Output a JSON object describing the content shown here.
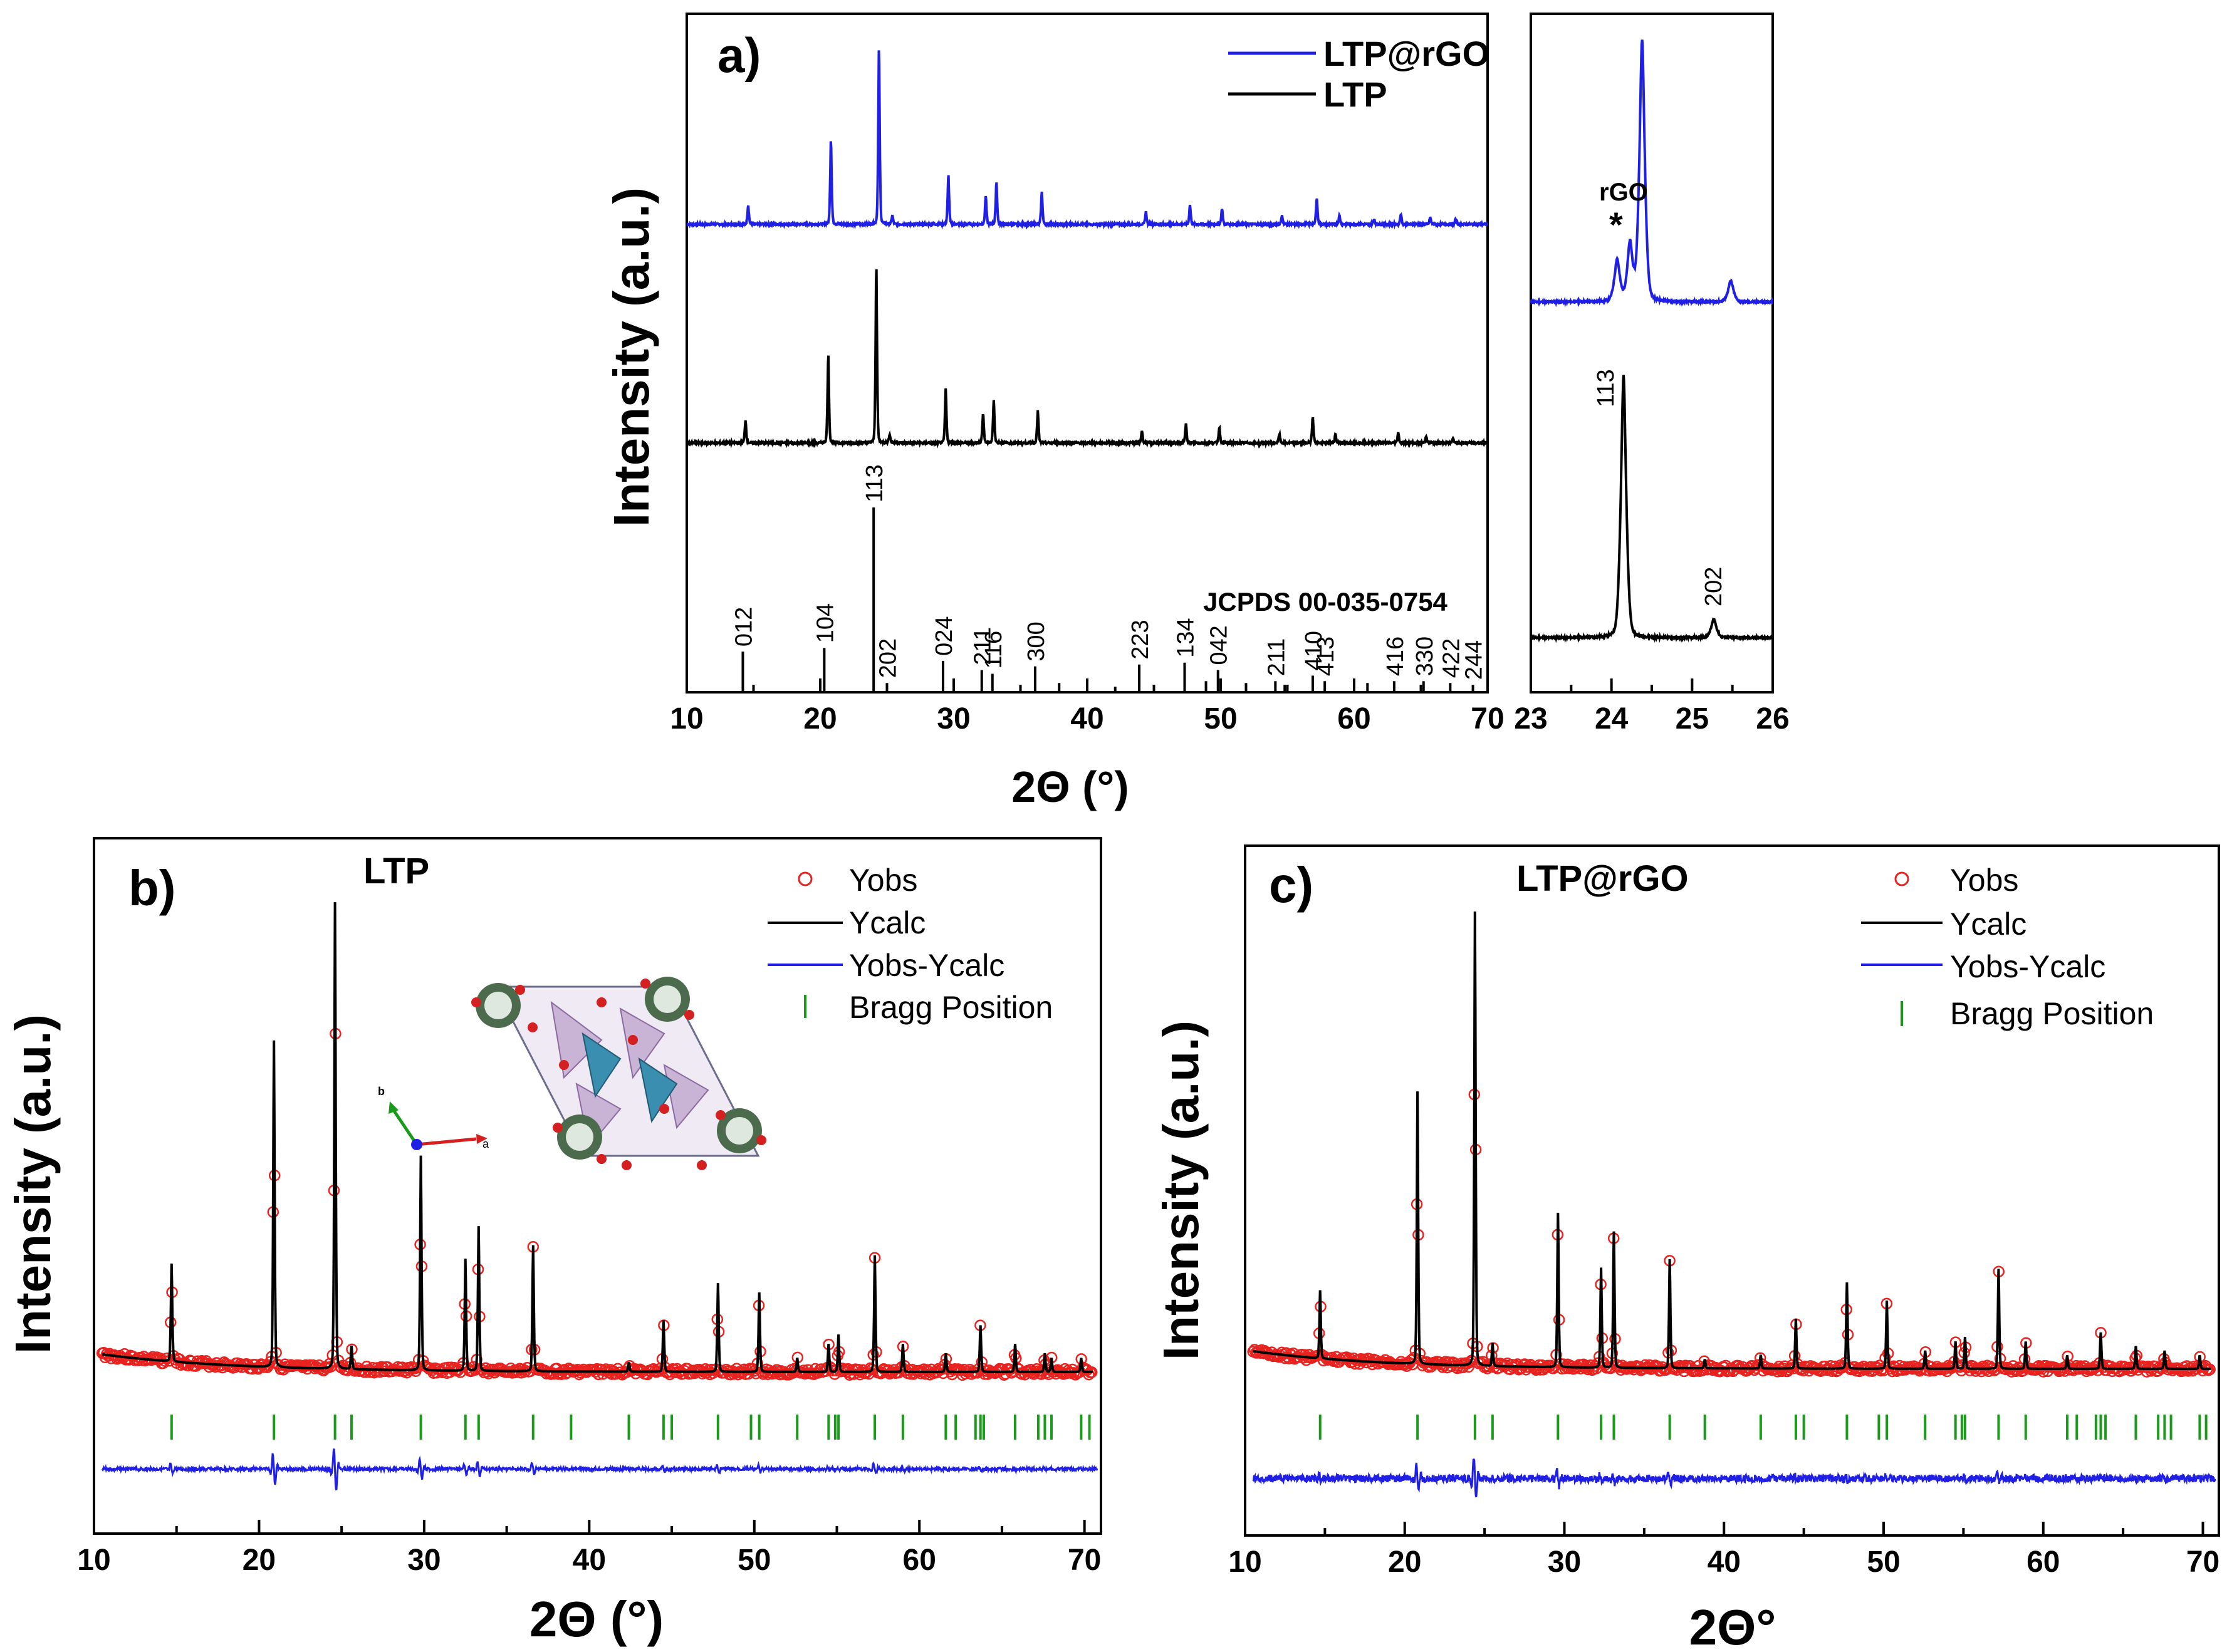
{
  "colors": {
    "blue": "#1f1fe6",
    "black": "#000000",
    "red": "#e8231f",
    "green": "#1a9a1a"
  },
  "panel_a": {
    "label": "a)",
    "ylabel": "Intensity (a.u.)",
    "xlabel": "2Θ (°)",
    "xticks": [
      "10",
      "20",
      "30",
      "40",
      "50",
      "60",
      "70"
    ],
    "inset_xticks": [
      "23",
      "24",
      "25",
      "26"
    ],
    "legend": [
      "LTP@rGO",
      "LTP"
    ],
    "jcpds_label": "JCPDS 00-035-0754",
    "rgo_label": "rGO",
    "star_label": "*",
    "inset_labels": [
      "113",
      "202"
    ]
  },
  "panel_b": {
    "label": "b)",
    "title": "LTP",
    "ylabel": "Intensity (a.u.)",
    "xlabel": "2Θ (°)",
    "xticks": [
      "10",
      "20",
      "30",
      "40",
      "50",
      "60",
      "70"
    ],
    "legend": [
      "Yobs",
      "Ycalc",
      "Yobs-Ycalc",
      "Bragg Position"
    ],
    "axis_labels": [
      "a",
      "b"
    ]
  },
  "panel_c": {
    "label": "c)",
    "title": "LTP@rGO",
    "ylabel": "Intensity (a.u.)",
    "xlabel": "2Θ°",
    "xticks": [
      "10",
      "20",
      "30",
      "40",
      "50",
      "60",
      "70"
    ],
    "legend": [
      "Yobs",
      "Ycalc",
      "Yobs-Ycalc",
      "Bragg Position"
    ]
  },
  "chart_data": [
    {
      "type": "line",
      "panel": "a",
      "xlabel": "2Θ (°)",
      "ylabel": "Intensity (a.u.)",
      "xlim": [
        10,
        70
      ],
      "series": [
        {
          "name": "LTP@rGO",
          "color": "#1f1fe6",
          "peaks": [
            [
              14.6,
              0.11
            ],
            [
              20.8,
              0.48
            ],
            [
              24.4,
              1.0
            ],
            [
              25.4,
              0.05
            ],
            [
              29.6,
              0.28
            ],
            [
              32.4,
              0.16
            ],
            [
              33.2,
              0.24
            ],
            [
              36.6,
              0.18
            ],
            [
              44.4,
              0.07
            ],
            [
              47.7,
              0.11
            ],
            [
              50.1,
              0.09
            ],
            [
              54.6,
              0.05
            ],
            [
              57.2,
              0.15
            ],
            [
              58.9,
              0.05
            ],
            [
              61.5,
              0.03
            ],
            [
              63.5,
              0.06
            ],
            [
              65.7,
              0.04
            ],
            [
              67.6,
              0.03
            ]
          ]
        },
        {
          "name": "LTP",
          "color": "#000000",
          "peaks": [
            [
              14.4,
              0.13
            ],
            [
              20.6,
              0.5
            ],
            [
              24.2,
              1.0
            ],
            [
              25.2,
              0.05
            ],
            [
              29.4,
              0.3
            ],
            [
              32.2,
              0.17
            ],
            [
              33.0,
              0.24
            ],
            [
              36.3,
              0.18
            ],
            [
              44.1,
              0.07
            ],
            [
              47.4,
              0.11
            ],
            [
              49.9,
              0.09
            ],
            [
              54.4,
              0.05
            ],
            [
              56.9,
              0.15
            ],
            [
              58.6,
              0.05
            ],
            [
              63.3,
              0.06
            ],
            [
              65.4,
              0.04
            ],
            [
              67.4,
              0.03
            ]
          ]
        }
      ],
      "reference": {
        "name": "JCPDS 00-035-0754",
        "sticks": [
          {
            "x": 14.2,
            "h": 0.22,
            "label": "012"
          },
          {
            "x": 20.3,
            "h": 0.24,
            "label": "104"
          },
          {
            "x": 24.0,
            "h": 1.0,
            "label": "113"
          },
          {
            "x": 25.0,
            "h": 0.05,
            "label": "202"
          },
          {
            "x": 29.2,
            "h": 0.17,
            "label": "024"
          },
          {
            "x": 32.1,
            "h": 0.12,
            "label": "211"
          },
          {
            "x": 32.9,
            "h": 0.1,
            "label": "116"
          },
          {
            "x": 36.1,
            "h": 0.14,
            "label": "300"
          },
          {
            "x": 37.9,
            "h": 0.05,
            "label": ""
          },
          {
            "x": 42.1,
            "h": 0.03,
            "label": ""
          },
          {
            "x": 43.9,
            "h": 0.15,
            "label": "223"
          },
          {
            "x": 47.3,
            "h": 0.16,
            "label": "134"
          },
          {
            "x": 48.9,
            "h": 0.06,
            "label": ""
          },
          {
            "x": 49.8,
            "h": 0.12,
            "label": "042"
          },
          {
            "x": 51.9,
            "h": 0.05,
            "label": ""
          },
          {
            "x": 54.1,
            "h": 0.06,
            "label": "211"
          },
          {
            "x": 54.8,
            "h": 0.04,
            "label": ""
          },
          {
            "x": 56.9,
            "h": 0.09,
            "label": "410"
          },
          {
            "x": 57.8,
            "h": 0.06,
            "label": "413"
          },
          {
            "x": 61.0,
            "h": 0.05,
            "label": ""
          },
          {
            "x": 63.0,
            "h": 0.06,
            "label": "416"
          },
          {
            "x": 65.2,
            "h": 0.06,
            "label": "330"
          },
          {
            "x": 67.2,
            "h": 0.05,
            "label": "422"
          },
          {
            "x": 68.9,
            "h": 0.04,
            "label": "244"
          }
        ]
      }
    },
    {
      "type": "line",
      "panel": "a-inset",
      "xlim": [
        23,
        26
      ],
      "series": [
        {
          "name": "LTP@rGO",
          "color": "#1f1fe6",
          "peaks": [
            [
              24.07,
              0.16
            ],
            [
              24.23,
              0.22
            ],
            [
              24.38,
              1.0
            ],
            [
              25.48,
              0.08
            ]
          ]
        },
        {
          "name": "LTP",
          "color": "#000000",
          "peaks": [
            [
              24.15,
              1.0
            ],
            [
              25.27,
              0.07
            ]
          ]
        }
      ]
    },
    {
      "type": "line",
      "panel": "b",
      "title": "LTP",
      "xlabel": "2Θ (°)",
      "ylabel": "Intensity (a.u.)",
      "xlim": [
        10,
        71
      ],
      "series_names": [
        "Yobs",
        "Ycalc",
        "Yobs-Ycalc",
        "Bragg Position"
      ],
      "peaks": [
        [
          14.7,
          0.21
        ],
        [
          20.9,
          0.7
        ],
        [
          24.6,
          1.0
        ],
        [
          25.6,
          0.05
        ],
        [
          29.8,
          0.46
        ],
        [
          32.5,
          0.24
        ],
        [
          33.3,
          0.31
        ],
        [
          36.6,
          0.27
        ],
        [
          42.4,
          0.02
        ],
        [
          44.5,
          0.11
        ],
        [
          47.8,
          0.19
        ],
        [
          50.3,
          0.17
        ],
        [
          52.6,
          0.03
        ],
        [
          54.5,
          0.06
        ],
        [
          55.1,
          0.08
        ],
        [
          57.3,
          0.25
        ],
        [
          59.0,
          0.06
        ],
        [
          61.6,
          0.04
        ],
        [
          63.7,
          0.1
        ],
        [
          65.8,
          0.06
        ],
        [
          67.6,
          0.04
        ],
        [
          68.0,
          0.03
        ],
        [
          69.8,
          0.03
        ]
      ],
      "bragg_positions": [
        14.7,
        20.9,
        24.6,
        25.6,
        29.8,
        32.5,
        33.3,
        36.6,
        38.9,
        42.4,
        44.5,
        45.0,
        47.8,
        49.8,
        50.3,
        52.6,
        54.5,
        54.9,
        55.1,
        57.3,
        59.0,
        61.6,
        62.2,
        63.4,
        63.7,
        63.9,
        65.8,
        67.2,
        67.6,
        68.0,
        69.8,
        70.3
      ]
    },
    {
      "type": "line",
      "panel": "c",
      "title": "LTP@rGO",
      "xlabel": "2Θ°",
      "ylabel": "Intensity (a.u.)",
      "xlim": [
        10,
        71
      ],
      "series_names": [
        "Yobs",
        "Ycalc",
        "Yobs-Ycalc",
        "Bragg Position"
      ],
      "peaks": [
        [
          14.7,
          0.15
        ],
        [
          20.8,
          0.6
        ],
        [
          24.4,
          1.0
        ],
        [
          25.5,
          0.05
        ],
        [
          29.6,
          0.34
        ],
        [
          32.3,
          0.22
        ],
        [
          33.1,
          0.3
        ],
        [
          36.6,
          0.24
        ],
        [
          38.8,
          0.02
        ],
        [
          42.3,
          0.03
        ],
        [
          44.5,
          0.11
        ],
        [
          47.7,
          0.19
        ],
        [
          50.2,
          0.15
        ],
        [
          52.6,
          0.04
        ],
        [
          54.5,
          0.06
        ],
        [
          55.1,
          0.07
        ],
        [
          57.2,
          0.22
        ],
        [
          58.9,
          0.06
        ],
        [
          61.5,
          0.03
        ],
        [
          63.6,
          0.08
        ],
        [
          65.8,
          0.05
        ],
        [
          67.6,
          0.04
        ],
        [
          69.8,
          0.03
        ]
      ],
      "bragg_positions": [
        14.7,
        20.8,
        24.4,
        25.5,
        29.6,
        32.3,
        33.1,
        36.6,
        38.8,
        42.3,
        44.5,
        45.0,
        47.7,
        49.7,
        50.2,
        52.6,
        54.5,
        54.9,
        55.1,
        57.2,
        58.9,
        61.5,
        62.1,
        63.3,
        63.6,
        63.9,
        65.8,
        67.2,
        67.6,
        68.0,
        69.8,
        70.2
      ]
    }
  ]
}
